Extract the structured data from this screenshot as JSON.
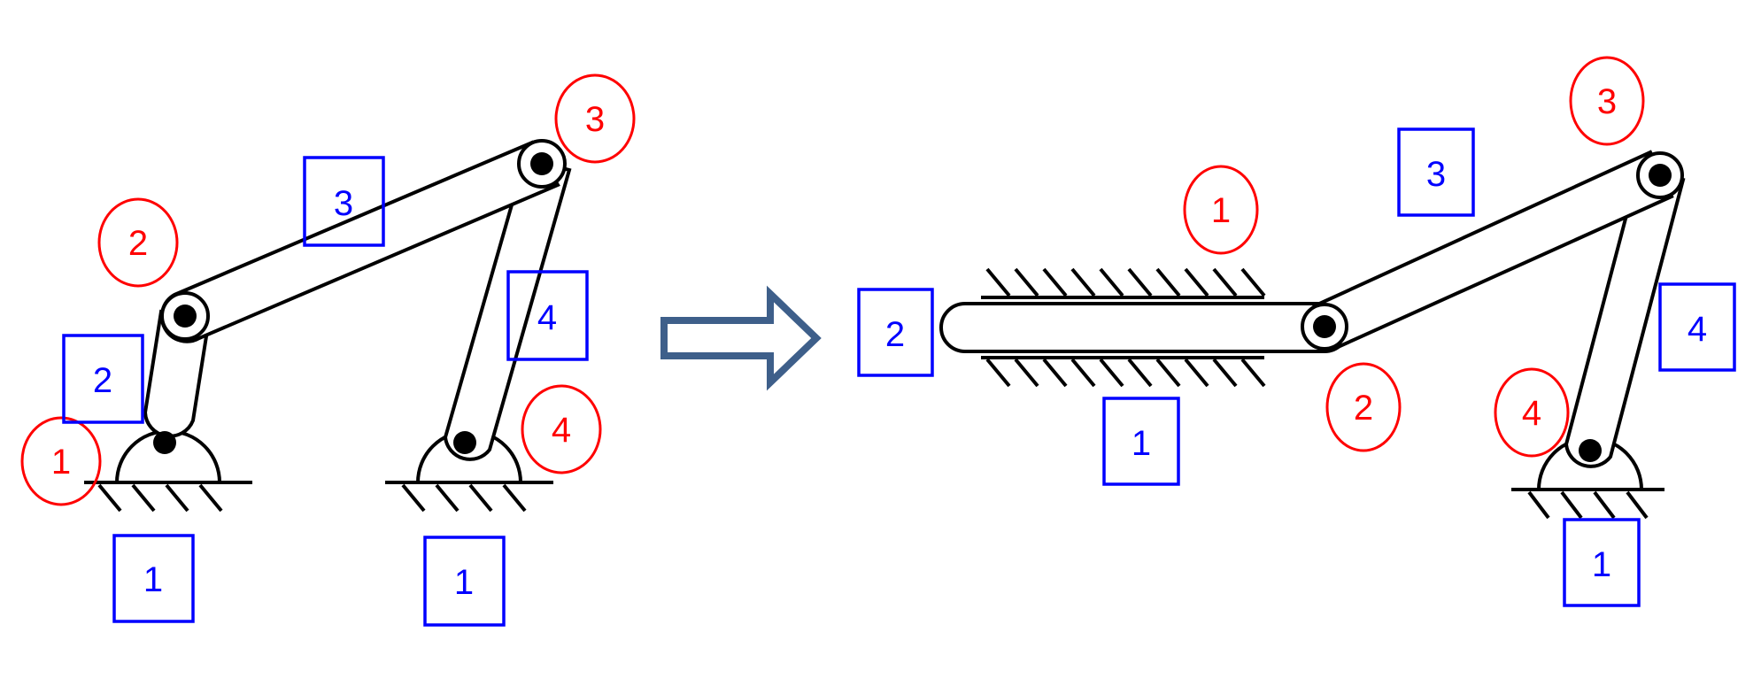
{
  "colors": {
    "joint_label": "#ff0000",
    "link_label": "#0000ff",
    "arrow_fill": "#ffffff",
    "arrow_stroke": "#3e5f8a",
    "mechanism": "#000000"
  },
  "left_mechanism": {
    "joint_labels": [
      "1",
      "2",
      "3",
      "4"
    ],
    "link_labels": [
      "1",
      "2",
      "3",
      "4",
      "1"
    ]
  },
  "arrow": {
    "icon": "right-arrow-icon"
  },
  "right_mechanism": {
    "joint_labels": [
      "1",
      "2",
      "3",
      "4"
    ],
    "link_labels": [
      "2",
      "1",
      "3",
      "4",
      "1"
    ]
  }
}
